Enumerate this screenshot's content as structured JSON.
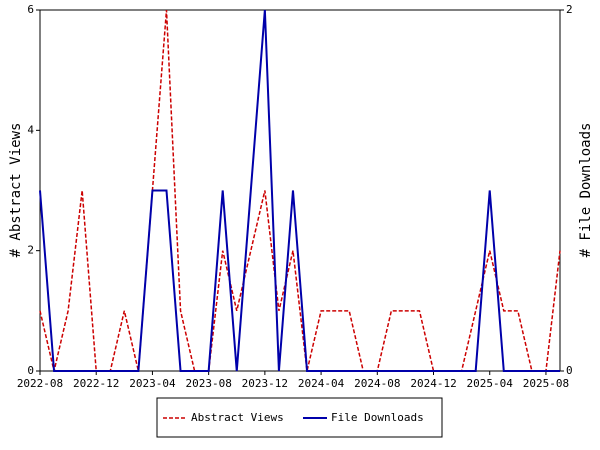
{
  "chart_data": {
    "type": "line",
    "categories": [
      "2022-08",
      null,
      null,
      null,
      "2022-12",
      null,
      null,
      null,
      "2023-04",
      null,
      null,
      null,
      "2023-08",
      null,
      null,
      null,
      "2023-12",
      null,
      null,
      null,
      "2024-04",
      null,
      null,
      null,
      "2024-08",
      null,
      null,
      null,
      "2024-12",
      null,
      null,
      null,
      "2025-04",
      null,
      null,
      null,
      "2025-08",
      null
    ],
    "ylabel": "# Abstract Views",
    "y2label": "# File Downloads",
    "ylim": [
      0,
      6
    ],
    "yticks": [
      0,
      2,
      4,
      6
    ],
    "y2lim": [
      0,
      2
    ],
    "y2ticks": [
      0,
      2
    ],
    "series": [
      {
        "name": "Abstract Views",
        "color": "#cc0000",
        "dash": true,
        "values": [
          1,
          0,
          1,
          3,
          0,
          0,
          1,
          0,
          3,
          6,
          1,
          0,
          0,
          2,
          1,
          2,
          3,
          1,
          2,
          0,
          1,
          1,
          1,
          0,
          0,
          1,
          1,
          1,
          0,
          0,
          0,
          1,
          2,
          1,
          1,
          0,
          0,
          2
        ]
      },
      {
        "name": "File Downloads",
        "color": "#0000aa",
        "axis": "y2",
        "values": [
          1,
          0,
          0,
          0,
          0,
          0,
          0,
          0,
          1,
          1,
          0,
          0,
          0,
          1,
          0,
          1,
          2,
          0,
          1,
          0,
          0,
          0,
          0,
          0,
          0,
          0,
          0,
          0,
          0,
          0,
          0,
          0,
          1,
          0,
          0,
          0,
          0,
          0
        ]
      }
    ],
    "legend": "bottom"
  }
}
